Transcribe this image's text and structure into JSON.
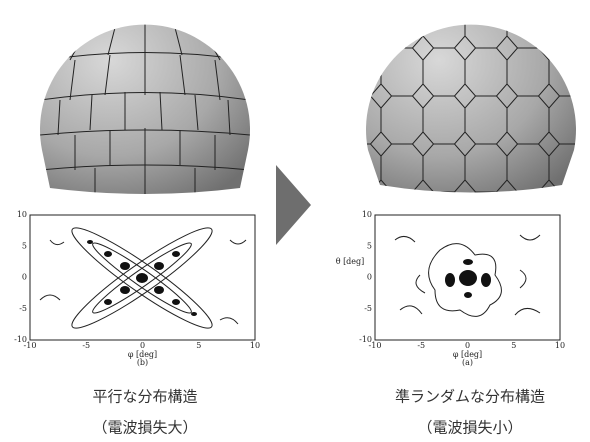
{
  "panels": [
    {
      "caption": "平行な分布構造",
      "note": "（電波損失大）",
      "plot": {
        "sublabel": "(b)",
        "xlabel": "φ [deg]",
        "xticks": [
          "-10",
          "-5",
          "0",
          "5",
          "10"
        ],
        "yticks": [
          "10",
          "5",
          "0",
          "-5",
          "-10"
        ]
      }
    },
    {
      "caption": "準ランダムな分布構造",
      "note": "（電波損失小）",
      "plot": {
        "sublabel": "(a)",
        "xlabel": "φ [deg]",
        "ylabel": "θ [deg]",
        "xticks": [
          "-10",
          "-5",
          "0",
          "5",
          "10"
        ],
        "yticks": [
          "10",
          "5",
          "0",
          "-5",
          "-10"
        ]
      }
    }
  ]
}
